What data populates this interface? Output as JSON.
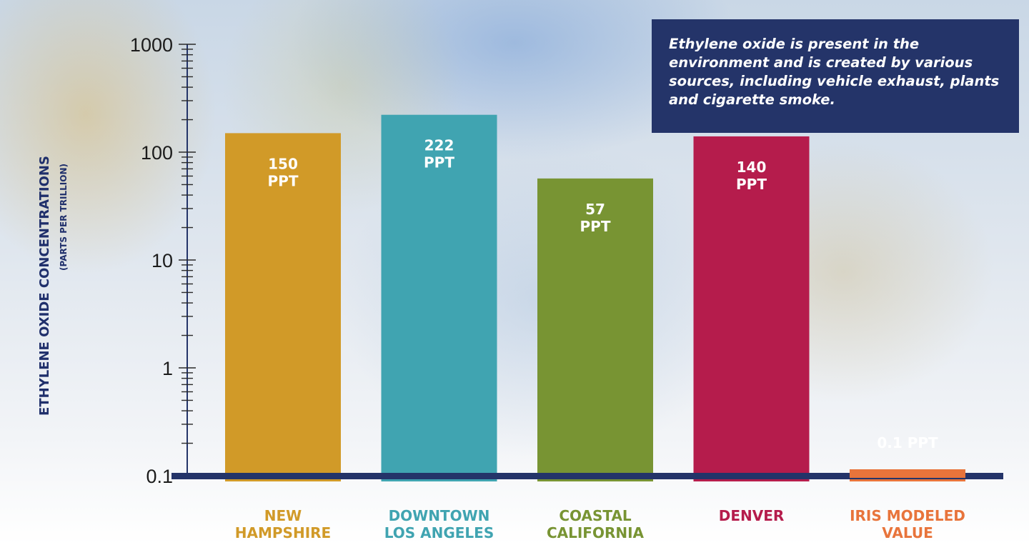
{
  "chart_data": {
    "type": "bar",
    "ylabel": "ETHYLENE OXIDE CONCENTRATIONS",
    "ylabel_sub": "(PARTS PER TRILLION)",
    "yscale": "log",
    "ylim": [
      0.1,
      1000
    ],
    "yticks": [
      "1000",
      "100",
      "10",
      "1",
      "0.1"
    ],
    "categories": [
      {
        "lines": [
          "NEW",
          "HAMPSHIRE"
        ],
        "color": "#d19a28"
      },
      {
        "lines": [
          "DOWNTOWN",
          "LOS ANGELES"
        ],
        "color": "#40a4b1"
      },
      {
        "lines": [
          "COASTAL",
          "CALIFORNIA"
        ],
        "color": "#789433"
      },
      {
        "lines": [
          "DENVER"
        ],
        "color": "#b51c4c"
      },
      {
        "lines": [
          "IRIS MODELED",
          "VALUE"
        ],
        "color": "#e8743b"
      }
    ],
    "values": [
      150,
      222,
      57,
      140,
      0.1
    ],
    "data_labels": [
      [
        "150",
        "PPT"
      ],
      [
        "222",
        "PPT"
      ],
      [
        "57",
        "PPT"
      ],
      [
        "140",
        "PPT"
      ],
      [
        "0.1 PPT"
      ]
    ],
    "axis_color": "#243469",
    "grid": false,
    "legend": "none"
  },
  "note": "Ethylene oxide is present in the environment and is created by various sources, including vehicle exhaust, plants and cigarette smoke."
}
